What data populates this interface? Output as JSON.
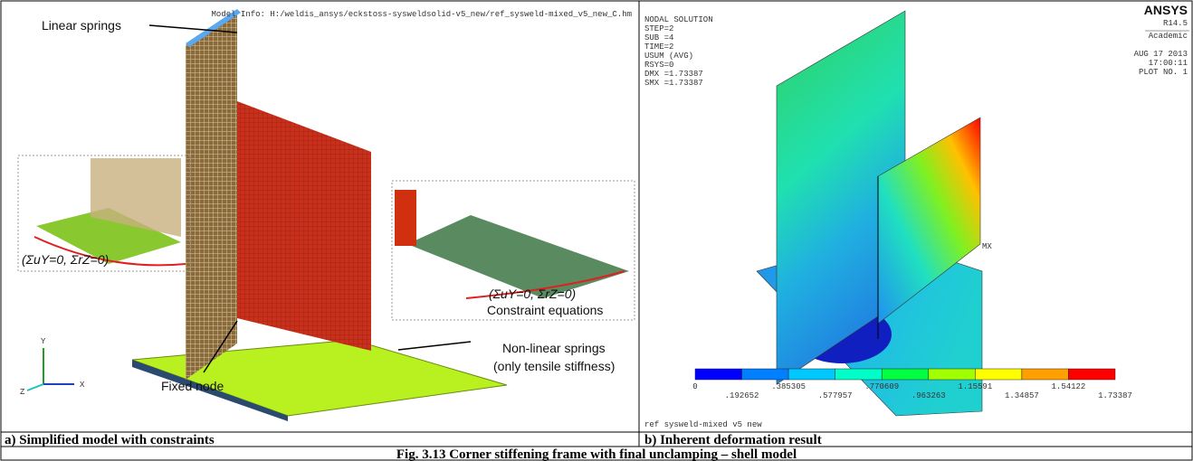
{
  "left_panel": {
    "model_info": "Model Info: H:/weldis_ansys/eckstoss-sysweldsolid-v5_new/ref_sysweld-mixed_v5_new_C.hm",
    "linear_springs": "Linear springs",
    "left_constraint": "(ΣuY=0, ΣrZ=0)",
    "right_constraint": "(ΣuY=0, ΣrZ=0)",
    "constraint_equations": "Constraint equations",
    "fixed_node": "Fixed node",
    "nonlinear_springs": "Non-linear springs",
    "tensile_note": "(only tensile stiffness)",
    "axis_y": "Y",
    "axis_x": "X",
    "axis_z": "Z"
  },
  "right_panel": {
    "header_lines": [
      "NODAL SOLUTION",
      "STEP=2",
      "SUB =4",
      "TIME=2",
      "USUM      (AVG)",
      "RSYS=0",
      "DMX =1.73387",
      "SMX =1.73387"
    ],
    "brand": "ANSYS",
    "release": "R14.5",
    "license": "Academic",
    "info_lines": [
      "AUG 17 2013",
      "17:00:11",
      "PLOT NO.   1"
    ],
    "max_marker": "MX",
    "colorbar_labels": [
      "0",
      ".192652",
      ".385305",
      ".577957",
      ".770609",
      ".963263",
      "1.15591",
      "1.34857",
      "1.54122",
      "1.73387"
    ],
    "colorbar_colors": [
      "#0000ff",
      "#0080ff",
      "#00c8ff",
      "#00ffc8",
      "#00ff40",
      "#a0ff00",
      "#ffff00",
      "#ffa000",
      "#ff0000"
    ],
    "footer": "ref sysweld-mixed v5 new"
  },
  "captions": {
    "a": "a) Simplified model with constraints",
    "b": "b) Inherent deformation result",
    "figure": "Fig. 3.13 Corner stiffening frame with final unclamping – shell model"
  }
}
